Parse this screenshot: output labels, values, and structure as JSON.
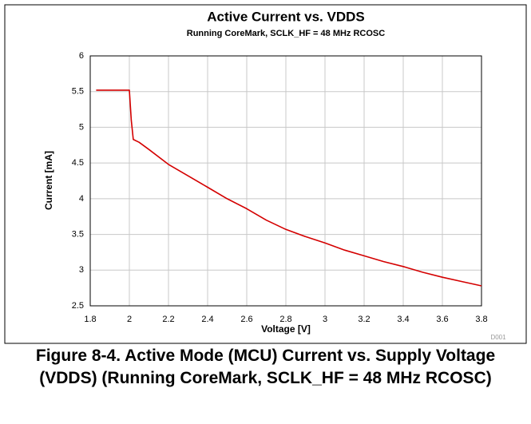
{
  "chart_data": {
    "type": "line",
    "title": "Active Current vs. VDDS",
    "subtitle": "Running CoreMark, SCLK_HF = 48 MHz RCOSC",
    "x_label": "Voltage [V]",
    "y_label": "Current [mA]",
    "annotation": "D001",
    "x": [
      1.83,
      1.9,
      2.0,
      2.01,
      2.02,
      2.05,
      2.1,
      2.2,
      2.3,
      2.4,
      2.5,
      2.6,
      2.7,
      2.8,
      2.9,
      3.0,
      3.1,
      3.2,
      3.3,
      3.4,
      3.5,
      3.6,
      3.7,
      3.8
    ],
    "series": [
      {
        "name": "Active Current",
        "color": "#d40000",
        "values": [
          5.52,
          5.52,
          5.52,
          5.1,
          4.83,
          4.79,
          4.69,
          4.48,
          4.32,
          4.16,
          4.0,
          3.86,
          3.7,
          3.57,
          3.47,
          3.38,
          3.28,
          3.2,
          3.12,
          3.05,
          2.97,
          2.9,
          2.84,
          2.78
        ]
      }
    ],
    "xlim": [
      1.8,
      3.8
    ],
    "ylim": [
      2.5,
      6
    ],
    "xticks": [
      1.8,
      2,
      2.2,
      2.4,
      2.6,
      2.8,
      3,
      3.2,
      3.4,
      3.6,
      3.8
    ],
    "yticks": [
      2.5,
      3,
      3.5,
      4,
      4.5,
      5,
      5.5,
      6
    ],
    "grid": true
  },
  "caption": "Figure 8-4. Active Mode (MCU) Current vs. Supply Voltage (VDDS) (Running CoreMark, SCLK_HF = 48 MHz RCOSC)"
}
